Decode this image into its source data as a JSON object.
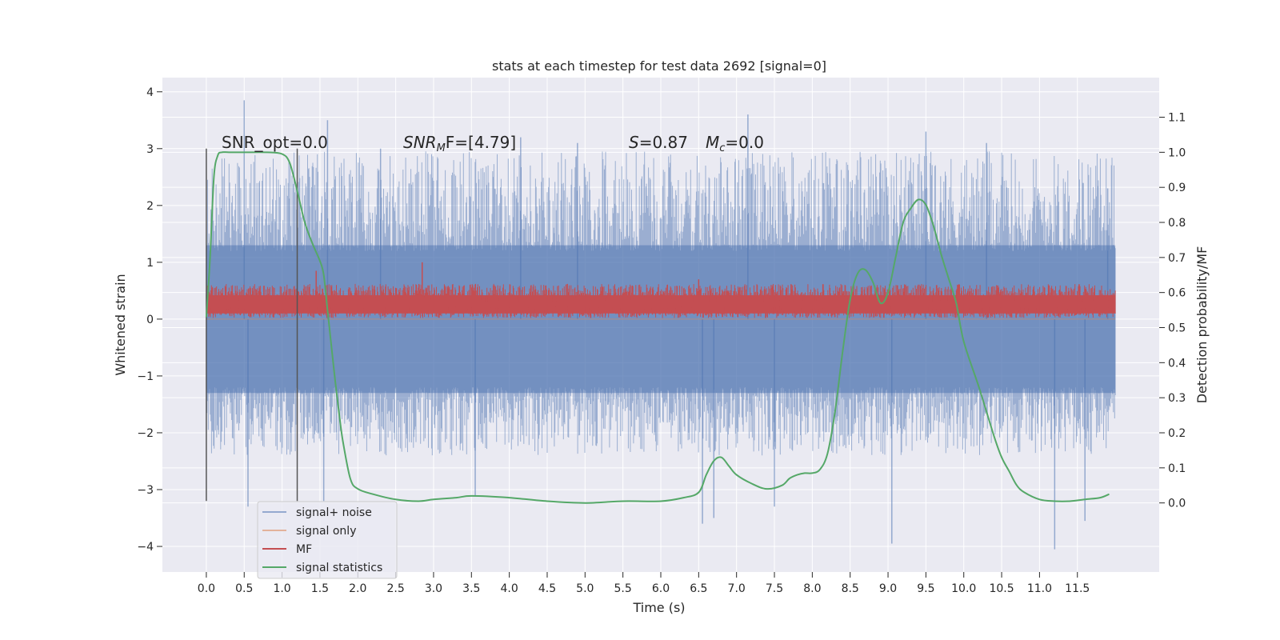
{
  "chart_data": {
    "type": "line",
    "title": "stats at each timestep for test data 2692 [signal=0]",
    "xlabel": "Time (s)",
    "ylabel_left": "Whitened strain",
    "ylabel_right": "Detection probability/MF",
    "xlim": [
      -0.58,
      12.58
    ],
    "ylim_left": [
      -4.45,
      4.25
    ],
    "ylim_right": [
      -0.197,
      1.213
    ],
    "grid": true,
    "x_ticks": [
      "0.0",
      "0.5",
      "1.0",
      "1.5",
      "2.0",
      "2.5",
      "3.0",
      "3.5",
      "4.0",
      "4.5",
      "5.0",
      "5.5",
      "6.0",
      "6.5",
      "7.0",
      "7.5",
      "8.0",
      "8.5",
      "9.0",
      "9.5",
      "10.0",
      "10.5",
      "11.0",
      "11.5"
    ],
    "y_ticks_left": [
      "4",
      "3",
      "2",
      "1",
      "0",
      "−1",
      "−2",
      "−3",
      "−4"
    ],
    "y_ticks_right": [
      "1.1",
      "1.0",
      "0.9",
      "0.8",
      "0.7",
      "0.6",
      "0.5",
      "0.4",
      "0.3",
      "0.2",
      "0.1",
      "0.0"
    ],
    "annotations": {
      "snr_opt": "SNR_opt=0.0",
      "snr_mf_prefix": "SNR",
      "snr_mf_sub": "M",
      "snr_mf_rest": "F=[4.79]",
      "s_prefix": "S",
      "s_value": "=0.87",
      "mc_prefix": "M",
      "mc_sub": "c",
      "mc_value": "=0.0"
    },
    "vertical_lines_x": [
      0.0,
      1.2
    ],
    "vertical_lines_range": [
      -3.2,
      3.0
    ],
    "legend": {
      "placement": "lower-left",
      "entries": [
        {
          "name": "signal+ noise",
          "color": "#4c72b0"
        },
        {
          "name": "signal only",
          "color": "#dd8452"
        },
        {
          "name": "MF",
          "color": "#c44e52"
        },
        {
          "name": "signal statistics",
          "color": "#55a868"
        }
      ]
    },
    "series": [
      {
        "name": "signal+ noise",
        "axis": "left",
        "color": "#4c72b0",
        "t_range": [
          0.0,
          12.0
        ],
        "envelope_abs": 1.3,
        "spike_peaks": [
          {
            "x": 0.5,
            "y": 3.85
          },
          {
            "x": 0.55,
            "y": -3.3
          },
          {
            "x": 1.6,
            "y": 3.5
          },
          {
            "x": 1.55,
            "y": -3.2
          },
          {
            "x": 2.3,
            "y": 3.0
          },
          {
            "x": 3.55,
            "y": -3.1
          },
          {
            "x": 4.15,
            "y": 3.2
          },
          {
            "x": 4.9,
            "y": 3.1
          },
          {
            "x": 6.55,
            "y": -3.6
          },
          {
            "x": 6.7,
            "y": -3.5
          },
          {
            "x": 7.15,
            "y": 3.6
          },
          {
            "x": 7.5,
            "y": -3.3
          },
          {
            "x": 9.05,
            "y": -3.95
          },
          {
            "x": 9.5,
            "y": 3.3
          },
          {
            "x": 10.3,
            "y": 3.1
          },
          {
            "x": 11.2,
            "y": -4.05
          },
          {
            "x": 11.6,
            "y": -3.55
          },
          {
            "x": 11.9,
            "y": 2.3
          }
        ]
      },
      {
        "name": "signal only",
        "axis": "left",
        "color": "#dd8452",
        "x": [
          0.0,
          12.0
        ],
        "y": [
          0.0,
          0.0
        ]
      },
      {
        "name": "MF",
        "axis": "left",
        "color": "#c44e52",
        "t_range": [
          0.0,
          12.0
        ],
        "center": 0.25,
        "band": [
          0.0,
          0.55
        ],
        "spike_peaks": [
          {
            "x": 2.85,
            "y": 1.0
          },
          {
            "x": 1.45,
            "y": 0.85
          },
          {
            "x": 6.5,
            "y": 0.7
          }
        ]
      },
      {
        "name": "signal statistics",
        "axis": "right",
        "color": "#55a868",
        "x": [
          0.0,
          0.05,
          0.1,
          0.15,
          0.2,
          0.3,
          0.5,
          0.8,
          1.0,
          1.1,
          1.2,
          1.3,
          1.4,
          1.5,
          1.55,
          1.6,
          1.65,
          1.7,
          1.75,
          1.8,
          1.9,
          2.0,
          2.2,
          2.5,
          2.8,
          3.0,
          3.3,
          3.5,
          4.0,
          4.5,
          5.0,
          5.5,
          6.0,
          6.3,
          6.5,
          6.6,
          6.7,
          6.8,
          6.9,
          7.0,
          7.2,
          7.4,
          7.6,
          7.7,
          7.8,
          7.9,
          8.0,
          8.1,
          8.2,
          8.3,
          8.4,
          8.5,
          8.6,
          8.7,
          8.8,
          8.9,
          9.0,
          9.1,
          9.2,
          9.3,
          9.4,
          9.5,
          9.6,
          9.7,
          9.8,
          9.9,
          10.0,
          10.2,
          10.4,
          10.5,
          10.6,
          10.7,
          10.8,
          11.0,
          11.2,
          11.4,
          11.6,
          11.8,
          11.92
        ],
        "y": [
          0.53,
          0.7,
          0.93,
          0.99,
          1.0,
          1.0,
          1.0,
          1.0,
          0.995,
          0.97,
          0.89,
          0.8,
          0.74,
          0.69,
          0.65,
          0.55,
          0.45,
          0.35,
          0.26,
          0.18,
          0.07,
          0.04,
          0.025,
          0.01,
          0.005,
          0.01,
          0.015,
          0.02,
          0.015,
          0.005,
          0.0,
          0.005,
          0.005,
          0.015,
          0.03,
          0.08,
          0.12,
          0.13,
          0.105,
          0.08,
          0.055,
          0.04,
          0.05,
          0.07,
          0.08,
          0.085,
          0.085,
          0.095,
          0.14,
          0.26,
          0.43,
          0.58,
          0.655,
          0.665,
          0.63,
          0.57,
          0.6,
          0.7,
          0.8,
          0.84,
          0.865,
          0.85,
          0.79,
          0.71,
          0.64,
          0.57,
          0.46,
          0.33,
          0.19,
          0.13,
          0.09,
          0.05,
          0.03,
          0.01,
          0.005,
          0.005,
          0.01,
          0.015,
          0.025
        ]
      }
    ]
  }
}
